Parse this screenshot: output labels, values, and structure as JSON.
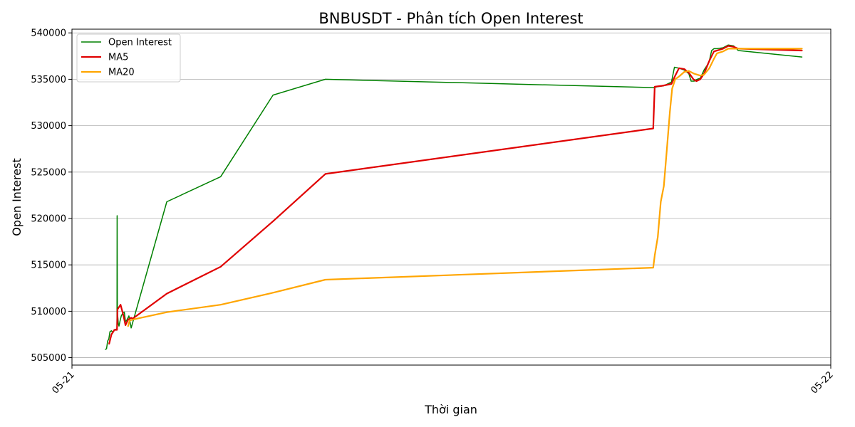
{
  "chart_data": {
    "type": "line",
    "title": "BNBUSDT - Phân tích Open Interest",
    "xlabel": "Thời gian",
    "ylabel": "Open Interest",
    "x_ticks": [
      {
        "label": "05-21",
        "t": 0
      },
      {
        "label": "05-22",
        "t": 1
      }
    ],
    "x_range": [
      0,
      1
    ],
    "ylim": [
      504200,
      540400
    ],
    "y_ticks": [
      505000,
      510000,
      515000,
      520000,
      525000,
      530000,
      535000,
      540000
    ],
    "grid": "horizontal",
    "legend": "top-left",
    "series": [
      {
        "name": "Open Interest",
        "color": "#008000",
        "width": 1.5,
        "points": [
          [
            0.044,
            505900
          ],
          [
            0.0455,
            505950
          ],
          [
            0.047,
            506800
          ],
          [
            0.0485,
            507000
          ],
          [
            0.05,
            507800
          ],
          [
            0.052,
            507900
          ],
          [
            0.054,
            507700
          ],
          [
            0.056,
            508000
          ],
          [
            0.0593,
            508100
          ],
          [
            0.0595,
            520300
          ],
          [
            0.0598,
            510000
          ],
          [
            0.061,
            508700
          ],
          [
            0.062,
            508400
          ],
          [
            0.0635,
            509000
          ],
          [
            0.065,
            509500
          ],
          [
            0.067,
            509800
          ],
          [
            0.069,
            509900
          ],
          [
            0.0705,
            508900
          ],
          [
            0.072,
            509000
          ],
          [
            0.075,
            509500
          ],
          [
            0.078,
            508200
          ],
          [
            0.125,
            521800
          ],
          [
            0.196,
            524500
          ],
          [
            0.265,
            533300
          ],
          [
            0.334,
            535000
          ],
          [
            0.766,
            534100
          ],
          [
            0.772,
            534200
          ],
          [
            0.78,
            534300
          ],
          [
            0.785,
            534500
          ],
          [
            0.79,
            534700
          ],
          [
            0.794,
            536300
          ],
          [
            0.8,
            536200
          ],
          [
            0.807,
            536000
          ],
          [
            0.813,
            535600
          ],
          [
            0.816,
            534800
          ],
          [
            0.82,
            534800
          ],
          [
            0.824,
            535000
          ],
          [
            0.828,
            535100
          ],
          [
            0.833,
            536000
          ],
          [
            0.837,
            536500
          ],
          [
            0.84,
            537000
          ],
          [
            0.843,
            538100
          ],
          [
            0.846,
            538300
          ],
          [
            0.85,
            538300
          ],
          [
            0.858,
            538400
          ],
          [
            0.865,
            538700
          ],
          [
            0.872,
            538600
          ],
          [
            0.878,
            538100
          ],
          [
            0.962,
            537400
          ]
        ]
      },
      {
        "name": "MA5",
        "color": "#e00000",
        "width": 2.2,
        "points": [
          [
            0.049,
            506500
          ],
          [
            0.052,
            507500
          ],
          [
            0.056,
            508000
          ],
          [
            0.0593,
            508000
          ],
          [
            0.06,
            510200
          ],
          [
            0.064,
            510700
          ],
          [
            0.068,
            509500
          ],
          [
            0.0705,
            508500
          ],
          [
            0.074,
            509100
          ],
          [
            0.078,
            509300
          ],
          [
            0.08,
            509200
          ],
          [
            0.125,
            511900
          ],
          [
            0.196,
            514800
          ],
          [
            0.265,
            519700
          ],
          [
            0.334,
            524800
          ],
          [
            0.766,
            529700
          ],
          [
            0.768,
            534200
          ],
          [
            0.778,
            534300
          ],
          [
            0.79,
            534500
          ],
          [
            0.795,
            535400
          ],
          [
            0.8,
            536200
          ],
          [
            0.807,
            536100
          ],
          [
            0.813,
            535700
          ],
          [
            0.819,
            535000
          ],
          [
            0.823,
            534800
          ],
          [
            0.828,
            535000
          ],
          [
            0.833,
            535600
          ],
          [
            0.84,
            537000
          ],
          [
            0.846,
            538000
          ],
          [
            0.858,
            538300
          ],
          [
            0.865,
            538600
          ],
          [
            0.872,
            538500
          ],
          [
            0.878,
            538300
          ],
          [
            0.962,
            538100
          ]
        ]
      },
      {
        "name": "MA20",
        "color": "#ffa500",
        "width": 2.2,
        "points": [
          [
            0.074,
            508400
          ],
          [
            0.076,
            509000
          ],
          [
            0.08,
            509100
          ],
          [
            0.125,
            509900
          ],
          [
            0.196,
            510700
          ],
          [
            0.265,
            512000
          ],
          [
            0.334,
            513400
          ],
          [
            0.766,
            514700
          ],
          [
            0.768,
            516000
          ],
          [
            0.772,
            518000
          ],
          [
            0.776,
            521800
          ],
          [
            0.78,
            523500
          ],
          [
            0.784,
            527500
          ],
          [
            0.788,
            531500
          ],
          [
            0.791,
            534000
          ],
          [
            0.795,
            535000
          ],
          [
            0.8,
            535300
          ],
          [
            0.807,
            535800
          ],
          [
            0.813,
            535900
          ],
          [
            0.82,
            535600
          ],
          [
            0.828,
            535400
          ],
          [
            0.833,
            535500
          ],
          [
            0.84,
            536200
          ],
          [
            0.846,
            537200
          ],
          [
            0.85,
            537800
          ],
          [
            0.858,
            538000
          ],
          [
            0.865,
            538300
          ],
          [
            0.872,
            538300
          ],
          [
            0.962,
            538300
          ]
        ]
      }
    ]
  }
}
